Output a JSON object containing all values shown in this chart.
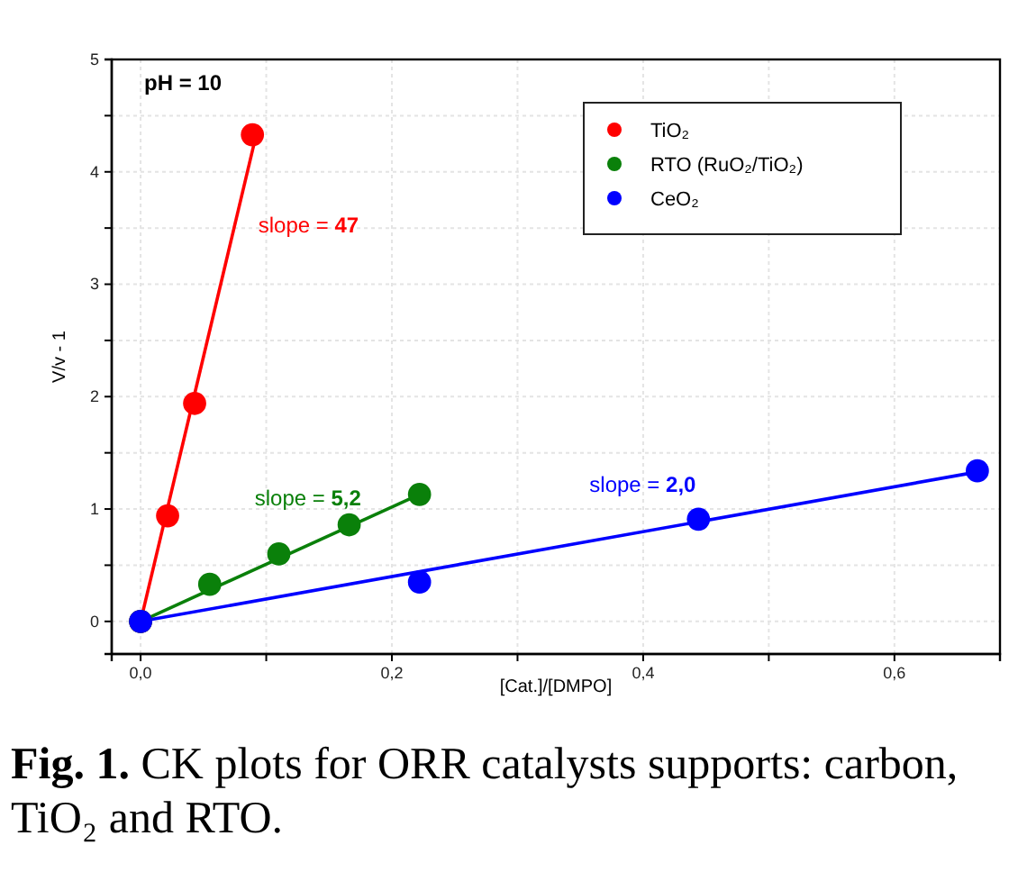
{
  "chart_data": {
    "type": "scatter",
    "xlabel": "[Cat.]/[DMPO]",
    "ylabel": "V/v - 1",
    "xlim": [
      -0.023,
      0.684
    ],
    "ylim": [
      -0.29,
      5
    ],
    "xticks": [
      {
        "value": 0,
        "label": "0,0"
      },
      {
        "value": 0.1,
        "label": null
      },
      {
        "value": 0.2,
        "label": "0,2"
      },
      {
        "value": 0.3,
        "label": null
      },
      {
        "value": 0.4,
        "label": "0,4"
      },
      {
        "value": 0.5,
        "label": null
      },
      {
        "value": 0.6,
        "label": "0,6"
      }
    ],
    "yticks": [
      0,
      {
        "value": 0.5,
        "label": null
      },
      1,
      {
        "value": 1.5,
        "label": null
      },
      2,
      {
        "value": 2.5,
        "label": null
      },
      3,
      {
        "value": 3.5,
        "label": null
      },
      4,
      {
        "value": 4.5,
        "label": null
      },
      5
    ],
    "grid": true,
    "legend": "top right",
    "marker": "circle",
    "series": [
      {
        "type": "line",
        "color": "#ff0000",
        "x": [
          0,
          0.092
        ],
        "values": [
          0,
          4.33
        ],
        "marker": "none"
      },
      {
        "type": "line",
        "color": "#0a800a",
        "x": [
          0,
          0.222
        ],
        "values": [
          0,
          1.13
        ],
        "marker": "none"
      },
      {
        "type": "line",
        "color": "#0000ff",
        "x": [
          0,
          0.666
        ],
        "values": [
          0,
          1.33
        ],
        "marker": "none"
      },
      {
        "name": "TiO₂",
        "color": "#ff0000",
        "x": [
          0,
          0.0215,
          0.043,
          0.089
        ],
        "values": [
          0,
          0.94,
          1.94,
          4.33
        ]
      },
      {
        "name": "RTO (RuO₂/TiO₂)",
        "color": "#0a800a",
        "x": [
          0,
          0.055,
          0.11,
          0.166,
          0.222
        ],
        "values": [
          0,
          0.33,
          0.6,
          0.86,
          1.13
        ]
      },
      {
        "name": "CeO₂",
        "color": "#0000ff",
        "x": [
          0,
          0.222,
          0.444,
          0.666
        ],
        "values": [
          0,
          0.35,
          0.91,
          1.34
        ]
      }
    ],
    "annotations": [
      "pH = 10",
      "slope = 47",
      "slope = 5,2",
      "slope = 2,0",
      "Fig. 1. CK plots for ORR catalysts supports: carbon, TiO₂ and RTO."
    ]
  }
}
